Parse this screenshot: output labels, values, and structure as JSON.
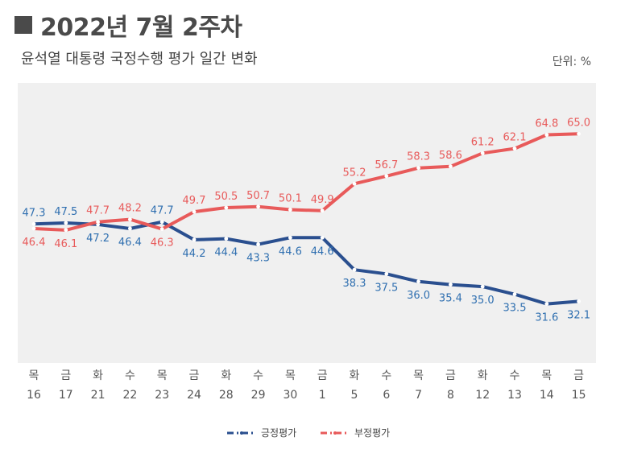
{
  "header": {
    "title": "2022년 7월 2주차",
    "subtitle": "윤석열 대통령 국정수행 평가 일간 변화",
    "unit": "단위: %"
  },
  "colors": {
    "positive": "#2a4f8f",
    "negative": "#e85a5a",
    "positive_label": "#2f6fb0",
    "negative_label": "#e85a5a",
    "plot_bg": "#f0f0f0",
    "tick_text": "#555555"
  },
  "chart_data": {
    "type": "line",
    "x_weekday": [
      "목",
      "금",
      "화",
      "수",
      "목",
      "금",
      "화",
      "수",
      "목",
      "금",
      "화",
      "수",
      "목",
      "금",
      "화",
      "수",
      "목",
      "금"
    ],
    "x_day": [
      "16",
      "17",
      "21",
      "22",
      "23",
      "24",
      "28",
      "29",
      "30",
      "1",
      "5",
      "6",
      "7",
      "8",
      "12",
      "13",
      "14",
      "15"
    ],
    "series": [
      {
        "name": "긍정평가",
        "key": "positive",
        "values": [
          47.3,
          47.5,
          47.2,
          46.4,
          47.7,
          44.2,
          44.4,
          43.3,
          44.6,
          44.6,
          38.3,
          37.5,
          36.0,
          35.4,
          35.0,
          33.5,
          31.6,
          32.1
        ],
        "labels": [
          "47.3",
          "47.5",
          "47.2",
          "46.4",
          "47.7",
          "44.2",
          "44.4",
          "43.3",
          "44.6",
          "44.6",
          "38.3",
          "37.5",
          "36.0",
          "35.4",
          "35.0",
          "33.5",
          "31.6",
          "32.1"
        ]
      },
      {
        "name": "부정평가",
        "key": "negative",
        "values": [
          46.4,
          46.1,
          47.7,
          48.2,
          46.3,
          49.7,
          50.5,
          50.7,
          50.1,
          49.9,
          55.2,
          56.7,
          58.3,
          58.6,
          61.2,
          62.1,
          64.8,
          65.0
        ],
        "labels": [
          "46.4",
          "46.1",
          "47.7",
          "48.2",
          "46.3",
          "49.7",
          "50.5",
          "50.7",
          "50.1",
          "49.9",
          "55.2",
          "56.7",
          "58.3",
          "58.6",
          "61.2",
          "62.1",
          "64.8",
          "65.0"
        ]
      }
    ],
    "ylim": [
      20,
      75
    ],
    "grid": false,
    "legend_position": "bottom-center"
  }
}
